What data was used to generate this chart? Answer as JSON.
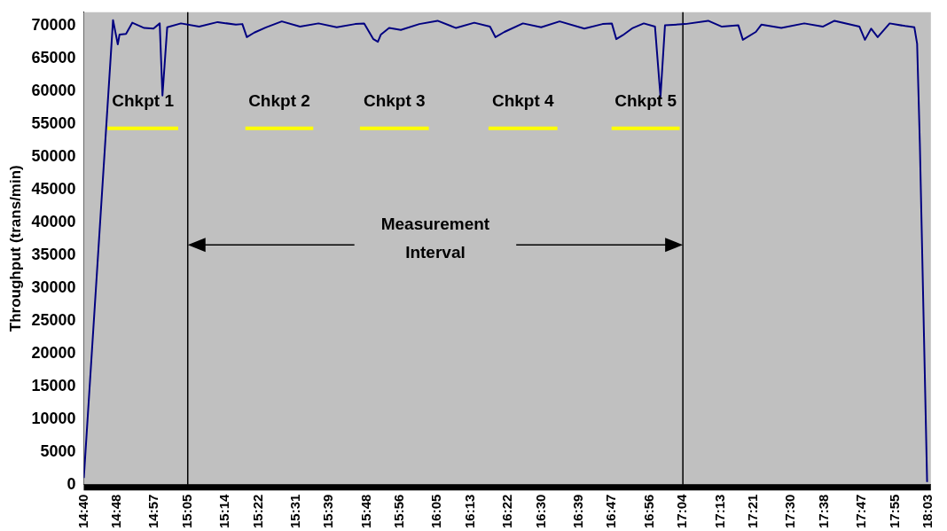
{
  "chart_data": {
    "type": "line",
    "ylabel": "Throughput (trans/min)",
    "xlim": [
      14.6667,
      18.06
    ],
    "ylim": [
      0,
      72000
    ],
    "yticks": [
      0,
      5000,
      10000,
      15000,
      20000,
      25000,
      30000,
      35000,
      40000,
      45000,
      50000,
      55000,
      60000,
      65000,
      70000
    ],
    "xticks": [
      {
        "value": 14.6667,
        "label": "14:40"
      },
      {
        "value": 14.8,
        "label": "14:48"
      },
      {
        "value": 14.95,
        "label": "14:57"
      },
      {
        "value": 15.0833,
        "label": "15:05"
      },
      {
        "value": 15.2333,
        "label": "15:14"
      },
      {
        "value": 15.3667,
        "label": "15:22"
      },
      {
        "value": 15.5167,
        "label": "15:31"
      },
      {
        "value": 15.65,
        "label": "15:39"
      },
      {
        "value": 15.8,
        "label": "15:48"
      },
      {
        "value": 15.9333,
        "label": "15:56"
      },
      {
        "value": 16.0833,
        "label": "16:05"
      },
      {
        "value": 16.2167,
        "label": "16:13"
      },
      {
        "value": 16.3667,
        "label": "16:22"
      },
      {
        "value": 16.5,
        "label": "16:30"
      },
      {
        "value": 16.65,
        "label": "16:39"
      },
      {
        "value": 16.7833,
        "label": "16:47"
      },
      {
        "value": 16.9333,
        "label": "16:56"
      },
      {
        "value": 17.0667,
        "label": "17:04"
      },
      {
        "value": 17.2167,
        "label": "17:13"
      },
      {
        "value": 17.35,
        "label": "17:21"
      },
      {
        "value": 17.5,
        "label": "17:30"
      },
      {
        "value": 17.6333,
        "label": "17:38"
      },
      {
        "value": 17.7833,
        "label": "17:47"
      },
      {
        "value": 17.9167,
        "label": "17:55"
      },
      {
        "value": 18.05,
        "label": "18:03"
      }
    ],
    "series": [
      {
        "color": "#000080",
        "x": [
          14.667,
          14.784,
          14.803,
          14.81,
          14.836,
          14.861,
          14.909,
          14.946,
          14.971,
          14.982,
          15.001,
          15.056,
          15.129,
          15.203,
          15.276,
          15.302,
          15.32,
          15.35,
          15.397,
          15.46,
          15.533,
          15.607,
          15.68,
          15.754,
          15.79,
          15.827,
          15.845,
          15.857,
          15.89,
          15.937,
          16.011,
          16.084,
          16.158,
          16.231,
          16.294,
          16.316,
          16.352,
          16.426,
          16.499,
          16.573,
          16.672,
          16.745,
          16.782,
          16.8,
          16.826,
          16.866,
          16.91,
          16.955,
          16.977,
          16.995,
          17.076,
          17.168,
          17.223,
          17.289,
          17.307,
          17.359,
          17.381,
          17.461,
          17.553,
          17.627,
          17.674,
          17.774,
          17.796,
          17.821,
          17.847,
          17.895,
          17.957,
          17.994,
          18.005,
          18.016,
          18.045
        ],
        "values": [
          1000,
          70800,
          67100,
          68600,
          68700,
          70400,
          69600,
          69500,
          70300,
          59300,
          69700,
          70300,
          69800,
          70500,
          70100,
          70200,
          68200,
          68900,
          69700,
          70600,
          69800,
          70300,
          69700,
          70200,
          70300,
          67900,
          67500,
          68600,
          69600,
          69300,
          70200,
          70700,
          69600,
          70400,
          69800,
          68200,
          69000,
          70300,
          69700,
          70600,
          69500,
          70200,
          70300,
          67900,
          68500,
          69600,
          70300,
          69800,
          59100,
          70000,
          70200,
          70700,
          69800,
          70000,
          67800,
          69000,
          70100,
          69600,
          70300,
          69800,
          70700,
          69800,
          67800,
          69500,
          68200,
          70300,
          69900,
          69700,
          67200,
          51900,
          400
        ]
      },
      {
        "name": "Chkpt 1",
        "color": "#ffff00",
        "x": [
          14.762,
          15.045
        ],
        "values": [
          54300,
          54300
        ]
      },
      {
        "name": "Chkpt 2",
        "color": "#ffff00",
        "x": [
          15.314,
          15.586
        ],
        "values": [
          54300,
          54300
        ]
      },
      {
        "name": "Chkpt 3",
        "color": "#ffff00",
        "x": [
          15.773,
          16.049
        ],
        "values": [
          54300,
          54300
        ]
      },
      {
        "name": "Chkpt 4",
        "color": "#ffff00",
        "x": [
          16.288,
          16.564
        ],
        "values": [
          54300,
          54300
        ]
      },
      {
        "name": "Chkpt 5",
        "color": "#ffff00",
        "x": [
          16.781,
          17.054
        ],
        "values": [
          54300,
          54300
        ]
      }
    ],
    "ref_lines": [
      {
        "axis": "x",
        "value": 15.0833,
        "color": "#000000"
      },
      {
        "axis": "x",
        "value": 17.0667,
        "color": "#000000"
      }
    ],
    "annotations": [
      "Measurement Interval"
    ],
    "grid": false,
    "legend": false,
    "marker": "none",
    "line_style": "solid"
  }
}
